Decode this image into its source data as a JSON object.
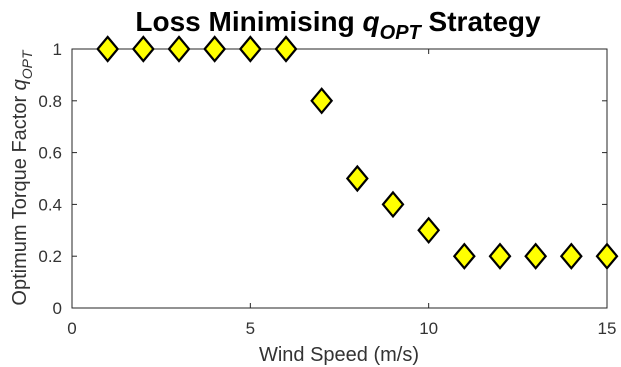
{
  "chart_data": {
    "type": "scatter",
    "title": {
      "main": "Loss Minimising ",
      "symbol": "q",
      "subscript": "OPT",
      "tail": " Strategy"
    },
    "xlabel": "Wind Speed (m/s)",
    "ylabel": {
      "main": "Optimum Torque Factor ",
      "symbol": "q",
      "subscript": "OPT"
    },
    "xlim": [
      0,
      15
    ],
    "ylim": [
      0,
      1
    ],
    "xticks": [
      0,
      5,
      10,
      15
    ],
    "yticks": [
      0,
      0.2,
      0.4,
      0.6,
      0.8,
      1
    ],
    "grid": false,
    "marker": "diamond",
    "marker_fill": "#ffff00",
    "marker_edge": "#000000",
    "series": [
      {
        "x": [
          1,
          2,
          3,
          4,
          5,
          6,
          7,
          8,
          9,
          10,
          11,
          12,
          13,
          14,
          15
        ],
        "y": [
          1,
          1,
          1,
          1,
          1,
          1,
          0.8,
          0.5,
          0.4,
          0.3,
          0.2,
          0.2,
          0.2,
          0.2,
          0.2
        ]
      }
    ]
  }
}
